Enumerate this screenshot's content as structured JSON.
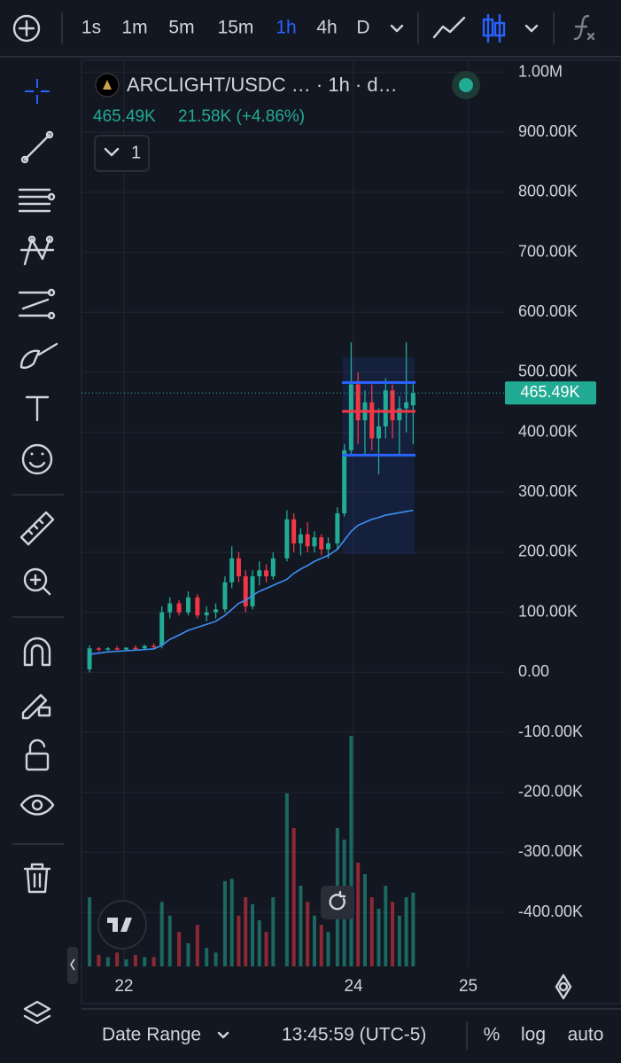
{
  "toolbar": {
    "timeframes": [
      "1s",
      "1m",
      "5m",
      "15m",
      "1h",
      "4h",
      "D"
    ],
    "active": 4
  },
  "header": {
    "symbol": "ARCLIGHT/USDC … · 1h · d…",
    "price": "465.49K",
    "change": "21.58K (+4.86%)",
    "indicators": "1"
  },
  "footer": {
    "range": "Date Range",
    "time": "13:45:59 (UTC-5)",
    "percent": "%",
    "log": "log",
    "auto": "auto"
  },
  "chart_data": {
    "type": "candlestick",
    "x": [
      21.7,
      21.78,
      21.86,
      21.94,
      22.02,
      22.1,
      22.18,
      22.26,
      22.33,
      22.4,
      22.48,
      22.56,
      22.64,
      22.72,
      22.8,
      22.88,
      22.94,
      23.0,
      23.06,
      23.12,
      23.18,
      23.24,
      23.3,
      23.42,
      23.48,
      23.54,
      23.6,
      23.66,
      23.72,
      23.78,
      23.86,
      23.92,
      23.98,
      24.04,
      24.1,
      24.16,
      24.22,
      24.28,
      24.34,
      24.4,
      24.46,
      24.52
    ],
    "open": [
      5000,
      40000,
      38000,
      40000,
      38000,
      41000,
      40000,
      44000,
      45000,
      100000,
      115000,
      100000,
      125000,
      95000,
      100000,
      105000,
      150000,
      190000,
      160000,
      110000,
      160000,
      170000,
      160000,
      190000,
      255000,
      215000,
      230000,
      210000,
      225000,
      205000,
      215000,
      265000,
      370000,
      480000,
      420000,
      450000,
      390000,
      410000,
      470000,
      420000,
      440000,
      445000
    ],
    "high": [
      45000,
      42000,
      42000,
      44000,
      42000,
      45000,
      46000,
      48000,
      110000,
      125000,
      120000,
      135000,
      130000,
      110000,
      115000,
      160000,
      210000,
      200000,
      170000,
      170000,
      185000,
      180000,
      200000,
      270000,
      265000,
      240000,
      250000,
      235000,
      230000,
      225000,
      275000,
      380000,
      550000,
      500000,
      470000,
      480000,
      440000,
      490000,
      480000,
      460000,
      550000,
      480000
    ],
    "low": [
      0,
      35000,
      36000,
      37000,
      36000,
      38000,
      38000,
      40000,
      40000,
      90000,
      95000,
      95000,
      90000,
      85000,
      90000,
      100000,
      140000,
      150000,
      100000,
      105000,
      145000,
      150000,
      155000,
      185000,
      200000,
      195000,
      200000,
      200000,
      195000,
      190000,
      205000,
      260000,
      360000,
      380000,
      360000,
      370000,
      330000,
      390000,
      390000,
      360000,
      400000,
      380000
    ],
    "close": [
      40000,
      38000,
      40000,
      38000,
      41000,
      40000,
      44000,
      42000,
      100000,
      115000,
      100000,
      125000,
      95000,
      100000,
      105000,
      150000,
      190000,
      160000,
      110000,
      160000,
      170000,
      160000,
      190000,
      255000,
      215000,
      230000,
      210000,
      225000,
      205000,
      215000,
      265000,
      370000,
      480000,
      420000,
      450000,
      390000,
      410000,
      470000,
      420000,
      440000,
      450000,
      465490
    ],
    "volume": [
      30,
      5,
      4,
      6,
      3,
      5,
      4,
      4,
      28,
      22,
      15,
      10,
      18,
      8,
      6,
      37,
      38,
      22,
      30,
      27,
      20,
      15,
      30,
      75,
      60,
      35,
      28,
      22,
      18,
      15,
      60,
      55,
      100,
      45,
      40,
      30,
      25,
      35,
      28,
      22,
      30,
      32
    ],
    "ma": [
      30000,
      32000,
      34000,
      35000,
      36000,
      37000,
      38000,
      39000,
      45000,
      55000,
      62000,
      70000,
      75000,
      80000,
      85000,
      95000,
      105000,
      115000,
      120000,
      128000,
      135000,
      140000,
      145000,
      155000,
      165000,
      172000,
      178000,
      185000,
      190000,
      195000,
      205000,
      220000,
      235000,
      245000,
      250000,
      255000,
      258000,
      262000,
      264000,
      266000,
      268000,
      270000
    ],
    "up_color": "#22ab94",
    "down_color": "#f23645",
    "ma_color": "#3d8ff5",
    "levels": [
      {
        "value": 483000,
        "color": "#2962ff"
      },
      {
        "value": 362000,
        "color": "#2962ff"
      },
      {
        "value": 435000,
        "color": "#f23645"
      }
    ],
    "last": {
      "value": 465490,
      "label": "465.49K"
    },
    "xlim": [
      21.63,
      25.32
    ],
    "xticks": [
      22,
      24,
      25
    ],
    "ylim": [
      -490000,
      1020000
    ],
    "yticks": [
      {
        "value": -400000,
        "label": "-400.00K"
      },
      {
        "value": -300000,
        "label": "-300.00K"
      },
      {
        "value": -200000,
        "label": "-200.00K"
      },
      {
        "value": -100000,
        "label": "-100.00K"
      },
      {
        "value": 0,
        "label": "0.00"
      },
      {
        "value": 100000,
        "label": "100.00K"
      },
      {
        "value": 200000,
        "label": "200.00K"
      },
      {
        "value": 300000,
        "label": "300.00K"
      },
      {
        "value": 400000,
        "label": "400.00K"
      },
      {
        "value": 500000,
        "label": "500.00K"
      },
      {
        "value": 600000,
        "label": "600.00K"
      },
      {
        "value": 700000,
        "label": "700.00K"
      },
      {
        "value": 800000,
        "label": "800.00K"
      },
      {
        "value": 900000,
        "label": "900.00K"
      },
      {
        "value": 1000000,
        "label": "1.00M"
      }
    ],
    "y2lim": [
      0,
      100
    ],
    "grid": true
  }
}
